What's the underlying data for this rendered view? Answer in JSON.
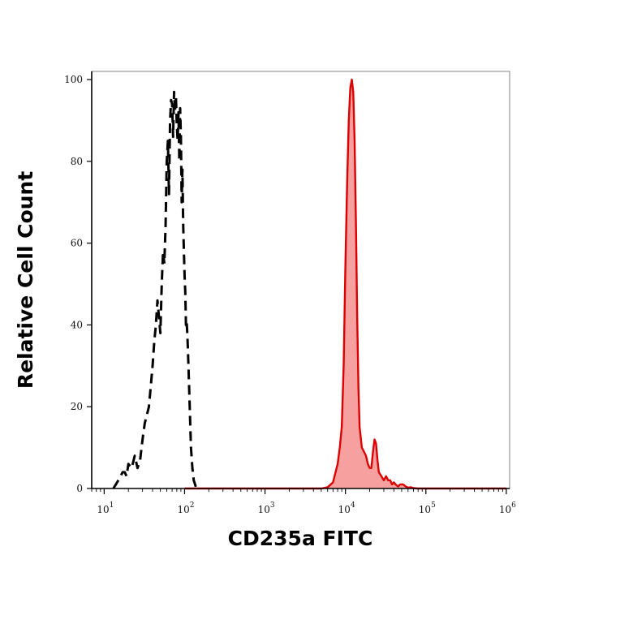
{
  "chart_data": {
    "type": "area",
    "title": "",
    "xlabel": "CD235a FITC",
    "ylabel": "Relative Cell Count",
    "x_scale": "log",
    "xlim": [
      7,
      1100000
    ],
    "ylim": [
      0,
      102
    ],
    "x_ticks": [
      {
        "base": "10",
        "exp": "1"
      },
      {
        "base": "10",
        "exp": "2"
      },
      {
        "base": "10",
        "exp": "3"
      },
      {
        "base": "10",
        "exp": "4"
      },
      {
        "base": "10",
        "exp": "5"
      },
      {
        "base": "10",
        "exp": "6"
      }
    ],
    "y_ticks": [
      "0",
      "20",
      "40",
      "60",
      "80",
      "100"
    ],
    "grid": false,
    "legend": "none",
    "colors": {
      "stained_line": "#dd0000",
      "stained_fill": "#f7a0a0",
      "control_line": "#000000",
      "axis": "#000000"
    },
    "series": [
      {
        "style": "dashed-black",
        "x": [
          13,
          14,
          15,
          16,
          17,
          18,
          19,
          20,
          22,
          24,
          26,
          28,
          30,
          32,
          34,
          36,
          38,
          40,
          42,
          44,
          46,
          48,
          50,
          52,
          54,
          56,
          58,
          60,
          62,
          64,
          66,
          68,
          70,
          72,
          74,
          76,
          78,
          80,
          82,
          84,
          86,
          88,
          90,
          92,
          94,
          96,
          98,
          100,
          102,
          104,
          106,
          108,
          110,
          115,
          120,
          125,
          130,
          135,
          140,
          145,
          150
        ],
        "y": [
          0,
          1,
          2,
          3,
          4,
          4,
          3,
          6,
          5,
          8,
          5,
          7,
          12,
          16,
          18,
          20,
          25,
          30,
          36,
          40,
          46,
          42,
          38,
          50,
          58,
          55,
          64,
          80,
          85,
          72,
          90,
          95,
          94,
          86,
          97,
          92,
          96,
          89,
          85,
          92,
          80,
          93,
          86,
          70,
          78,
          65,
          58,
          52,
          48,
          40,
          41,
          38,
          34,
          22,
          10,
          5,
          2,
          1,
          0,
          0,
          0
        ]
      },
      {
        "style": "filled-red",
        "x": [
          100,
          1000,
          3000,
          5000,
          6000,
          7000,
          8000,
          8500,
          9000,
          9500,
          10000,
          10500,
          11000,
          11500,
          12000,
          12500,
          13000,
          13500,
          14000,
          14500,
          15000,
          16000,
          17000,
          18000,
          19000,
          20000,
          21000,
          22000,
          23000,
          24000,
          25000,
          26000,
          28000,
          30000,
          32000,
          34000,
          36000,
          38000,
          40000,
          42000,
          45000,
          48000,
          52000,
          56000,
          60000,
          65000,
          70000,
          80000,
          90000,
          100000,
          150000,
          1000000
        ],
        "y": [
          0,
          0,
          0,
          0,
          0.3,
          1.5,
          6,
          10,
          15,
          30,
          55,
          75,
          90,
          98,
          100,
          97,
          85,
          65,
          42,
          25,
          15,
          10,
          9,
          8,
          6,
          5,
          5,
          9,
          12,
          11,
          7,
          4,
          3,
          2,
          3,
          2,
          2,
          1,
          1.5,
          1,
          0.5,
          1,
          1,
          0.5,
          0.2,
          0.3,
          0.1,
          0,
          0,
          0,
          0,
          0
        ]
      }
    ]
  }
}
